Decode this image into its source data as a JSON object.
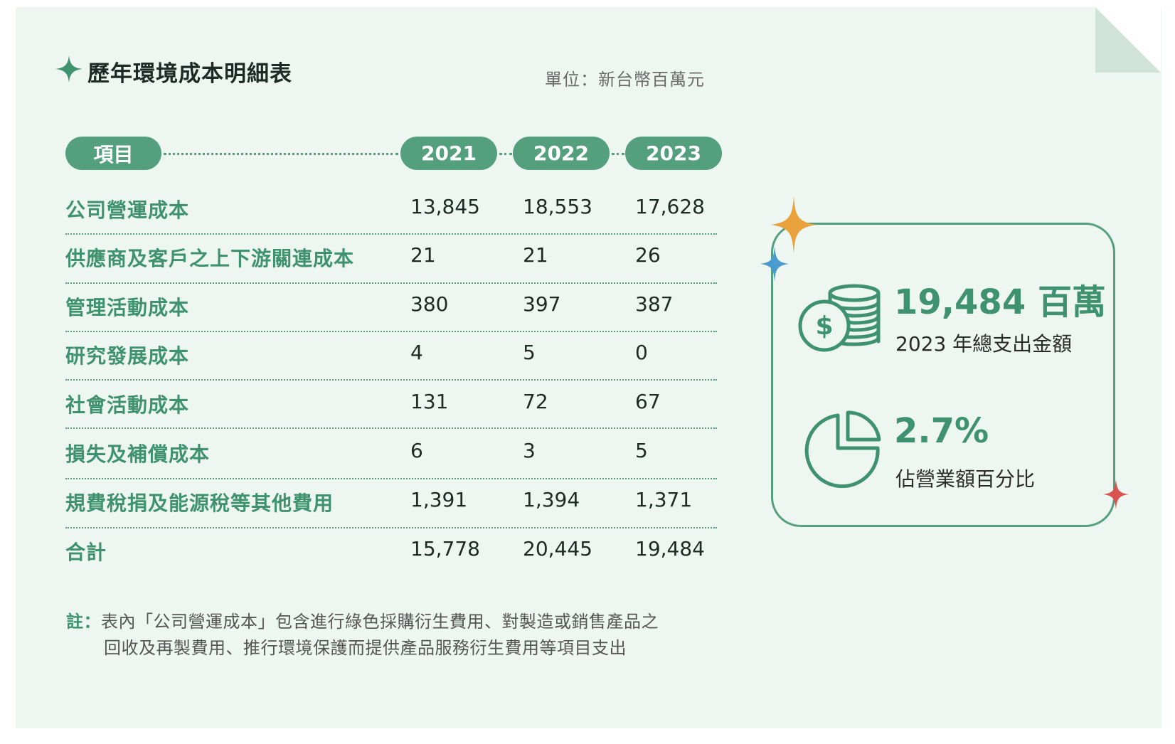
{
  "title": "歷年環境成本明細表",
  "unit": "單位：新台幣百萬元",
  "table": {
    "header_item": "項目",
    "years": [
      "2021",
      "2022",
      "2023"
    ],
    "rows": [
      {
        "label": "公司營運成本",
        "values": [
          "13,845",
          "18,553",
          "17,628"
        ]
      },
      {
        "label": "供應商及客戶之上下游關連成本",
        "values": [
          "21",
          "21",
          "26"
        ]
      },
      {
        "label": "管理活動成本",
        "values": [
          "380",
          "397",
          "387"
        ]
      },
      {
        "label": "研究發展成本",
        "values": [
          "4",
          "5",
          "0"
        ]
      },
      {
        "label": "社會活動成本",
        "values": [
          "131",
          "72",
          "67"
        ]
      },
      {
        "label": "損失及補償成本",
        "values": [
          "6",
          "3",
          "5"
        ]
      },
      {
        "label": "規費稅捐及能源稅等其他費用",
        "values": [
          "1,391",
          "1,394",
          "1,371"
        ]
      },
      {
        "label": "合計",
        "values": [
          "15,778",
          "20,445",
          "19,484"
        ]
      }
    ]
  },
  "note": {
    "label": "註：",
    "line1": "表內「公司營運成本」包含進行綠色採購衍生費用、對製造或銷售產品之",
    "line2": "回收及再製費用、推行環境保護而提供產品服務衍生費用等項目支出"
  },
  "summary": {
    "total_value": "19,484 百萬",
    "total_label": "2023 年總支出金額",
    "percent_value": "2.7%",
    "percent_label": "佔營業額百分比",
    "percent_numeric": 2.7
  },
  "icons": {
    "title_star": "sparkle-icon",
    "money": "coin-stack-dollar-icon",
    "pie": "pie-chart-icon",
    "decor": [
      "orange-sparkle-icon",
      "blue-sparkle-icon",
      "red-sparkle-icon"
    ]
  },
  "colors": {
    "accent": "#54a07e",
    "accent_text": "#3f9270",
    "background": "#eef6f1",
    "fold": "#cfe3d8",
    "sparkle_orange": "#e9a23b",
    "sparkle_blue": "#4a9bd0",
    "sparkle_red": "#d9534f"
  }
}
